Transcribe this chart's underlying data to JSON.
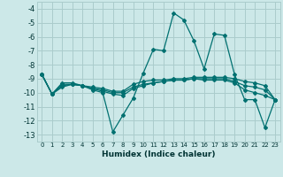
{
  "xlabel": "Humidex (Indice chaleur)",
  "ylabel": "",
  "background_color": "#cce8e8",
  "grid_color": "#aacccc",
  "line_color": "#007070",
  "xlim": [
    -0.5,
    23.5
  ],
  "ylim": [
    -13.5,
    -3.5
  ],
  "yticks": [
    -13,
    -12,
    -11,
    -10,
    -9,
    -8,
    -7,
    -6,
    -5,
    -4
  ],
  "xticks": [
    0,
    1,
    2,
    3,
    4,
    5,
    6,
    7,
    8,
    9,
    10,
    11,
    12,
    13,
    14,
    15,
    16,
    17,
    18,
    19,
    20,
    21,
    22,
    23
  ],
  "series": [
    {
      "x": [
        0,
        1,
        2,
        3,
        4,
        5,
        6,
        7,
        8,
        9,
        10,
        11,
        12,
        13,
        14,
        15,
        16,
        17,
        18,
        19,
        20,
        21,
        22,
        23
      ],
      "y": [
        -8.7,
        -10.1,
        -9.6,
        -9.4,
        -9.5,
        -9.8,
        -10.0,
        -12.8,
        -11.6,
        -10.4,
        -8.6,
        -6.9,
        -7.0,
        -4.3,
        -4.8,
        -6.3,
        -8.3,
        -5.8,
        -5.9,
        -8.7,
        -10.5,
        -10.5,
        -12.5,
        -10.5
      ]
    },
    {
      "x": [
        0,
        1,
        2,
        3,
        4,
        5,
        6,
        7,
        8,
        9,
        10,
        11,
        12,
        13,
        14,
        15,
        16,
        17,
        18,
        19,
        20,
        21,
        22,
        23
      ],
      "y": [
        -8.7,
        -10.1,
        -9.3,
        -9.3,
        -9.5,
        -9.6,
        -9.7,
        -9.9,
        -9.9,
        -9.4,
        -9.2,
        -9.1,
        -9.1,
        -9.0,
        -9.0,
        -8.9,
        -8.9,
        -8.9,
        -8.9,
        -9.0,
        -9.2,
        -9.3,
        -9.5,
        -10.5
      ]
    },
    {
      "x": [
        0,
        1,
        2,
        3,
        4,
        5,
        6,
        7,
        8,
        9,
        10,
        11,
        12,
        13,
        14,
        15,
        16,
        17,
        18,
        19,
        20,
        21,
        22,
        23
      ],
      "y": [
        -8.7,
        -10.1,
        -9.4,
        -9.4,
        -9.5,
        -9.7,
        -9.8,
        -10.0,
        -10.0,
        -9.6,
        -9.4,
        -9.3,
        -9.2,
        -9.1,
        -9.1,
        -9.0,
        -9.0,
        -9.0,
        -9.0,
        -9.2,
        -9.5,
        -9.6,
        -9.8,
        -10.5
      ]
    },
    {
      "x": [
        0,
        1,
        2,
        3,
        4,
        5,
        6,
        7,
        8,
        9,
        10,
        11,
        12,
        13,
        14,
        15,
        16,
        17,
        18,
        19,
        20,
        21,
        22,
        23
      ],
      "y": [
        -8.7,
        -10.1,
        -9.5,
        -9.4,
        -9.5,
        -9.7,
        -9.9,
        -10.1,
        -10.2,
        -9.7,
        -9.5,
        -9.3,
        -9.2,
        -9.1,
        -9.1,
        -9.0,
        -9.1,
        -9.1,
        -9.1,
        -9.3,
        -9.8,
        -10.0,
        -10.2,
        -10.5
      ]
    }
  ]
}
